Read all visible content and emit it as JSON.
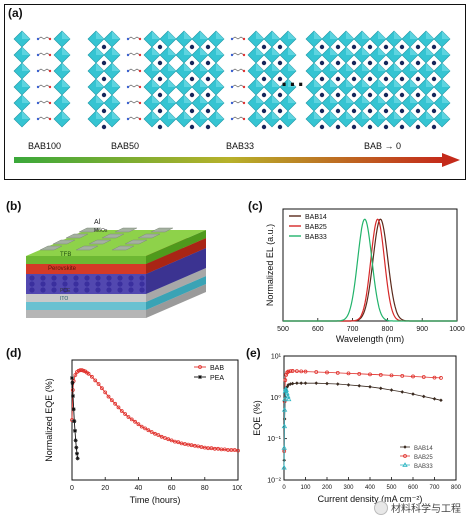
{
  "panel_labels": {
    "a": "(a)",
    "b": "(b)",
    "c": "(c)",
    "d": "(d)",
    "e": "(e)"
  },
  "structure_labels": [
    "BAB100",
    "BAB50",
    "BAB33",
    "BAB → 0"
  ],
  "ellipsis": "···",
  "device_layers": {
    "al": "Al",
    "moox": "MoOx",
    "tfb": "TFB",
    "perovskite": "Perovskite",
    "pce": "PCE",
    "ito": "ITO"
  },
  "colors": {
    "octahedra": "#35c4d2",
    "octahedra_edge": "#1f97a6",
    "gradient_start": "#3aa83a",
    "gradient_mid": "#b7b12a",
    "gradient_end": "#c42a1a",
    "bab14": "#5b2a1c",
    "bab25": "#d62828",
    "bab33": "#22b36b",
    "bab": "#e0302b",
    "pea": "#111111"
  },
  "watermark": "材料科学与工程",
  "chart_data": [
    {
      "id": "c",
      "type": "line",
      "xlabel": "Wavelength (nm)",
      "ylabel": "Normalized EL (a.u.)",
      "xlim": [
        500,
        1000
      ],
      "xticks": [
        500,
        600,
        700,
        800,
        900,
        1000
      ],
      "ylim": [
        0,
        1.1
      ],
      "legend": "top-left",
      "series": [
        {
          "name": "BAB14",
          "color": "#5b2a1c",
          "peak": 780,
          "fwhm": 50,
          "ampl": 1.0
        },
        {
          "name": "BAB25",
          "color": "#d62828",
          "peak": 772,
          "fwhm": 46,
          "ampl": 1.0
        },
        {
          "name": "BAB33",
          "color": "#22b36b",
          "peak": 735,
          "fwhm": 48,
          "ampl": 1.0
        }
      ]
    },
    {
      "id": "d",
      "type": "line",
      "xlabel": "Time (hours)",
      "ylabel": "Normalized EQE (%)",
      "xlim": [
        0,
        100
      ],
      "xticks": [
        0,
        20,
        40,
        60,
        80,
        100
      ],
      "ylim": [
        0,
        200
      ],
      "legend": "top-right",
      "series": [
        {
          "name": "BAB",
          "color": "#e0302b",
          "marker": "circle",
          "x": [
            0,
            0.5,
            1,
            2,
            3,
            4,
            5,
            6,
            7,
            8,
            9,
            10,
            12,
            14,
            16,
            18,
            20,
            22,
            24,
            26,
            28,
            30,
            32,
            34,
            36,
            38,
            40,
            42,
            44,
            46,
            48,
            50,
            52,
            54,
            56,
            58,
            60,
            62,
            64,
            66,
            68,
            70,
            72,
            74,
            76,
            78,
            80,
            82,
            84,
            86,
            88,
            90,
            92,
            94,
            96,
            98,
            100
          ],
          "y": [
            100,
            150,
            165,
            175,
            180,
            182,
            183,
            183,
            182,
            181,
            179,
            177,
            172,
            166,
            160,
            153,
            146,
            139,
            133,
            127,
            121,
            115,
            110,
            105,
            101,
            97,
            93,
            89,
            86,
            83,
            80,
            77,
            75,
            72,
            70,
            68,
            66,
            64,
            63,
            61,
            60,
            59,
            58,
            57,
            56,
            55,
            54,
            53,
            53,
            52,
            52,
            51,
            51,
            50,
            50,
            50,
            49
          ]
        },
        {
          "name": "PEA",
          "color": "#111111",
          "marker": "star",
          "x": [
            0,
            0.3,
            0.6,
            1,
            1.4,
            1.8,
            2.2,
            2.6,
            3,
            3.4
          ],
          "y": [
            170,
            162,
            140,
            118,
            98,
            82,
            66,
            54,
            44,
            36
          ]
        }
      ]
    },
    {
      "id": "e",
      "type": "line",
      "xlabel": "Current density (mA cm⁻²)",
      "ylabel": "EQE (%)",
      "xlim": [
        0,
        800
      ],
      "xticks": [
        0,
        100,
        200,
        300,
        400,
        500,
        600,
        700,
        800
      ],
      "yscale": "log",
      "ylim": [
        0.01,
        10
      ],
      "yticks": [
        0.01,
        0.1,
        1,
        10
      ],
      "yticklabels": [
        "10⁻²",
        "10⁻¹",
        "10⁰",
        "10¹"
      ],
      "legend": "bottom-right",
      "series": [
        {
          "name": "BAB14",
          "color": "#3a2a20",
          "marker": "diamond",
          "x": [
            1,
            3,
            6,
            10,
            15,
            20,
            30,
            40,
            60,
            80,
            100,
            150,
            200,
            250,
            300,
            350,
            400,
            450,
            500,
            550,
            600,
            650,
            700,
            730
          ],
          "y": [
            0.03,
            0.3,
            1.0,
            1.5,
            1.8,
            2.0,
            2.1,
            2.15,
            2.2,
            2.2,
            2.2,
            2.2,
            2.15,
            2.1,
            2.0,
            1.9,
            1.8,
            1.65,
            1.5,
            1.35,
            1.2,
            1.05,
            0.92,
            0.85
          ]
        },
        {
          "name": "BAB25",
          "color": "#e0302b",
          "marker": "circle",
          "x": [
            1,
            3,
            6,
            10,
            15,
            20,
            30,
            40,
            60,
            80,
            100,
            150,
            200,
            250,
            300,
            350,
            400,
            450,
            500,
            550,
            600,
            650,
            700,
            730
          ],
          "y": [
            0.05,
            0.8,
            2.6,
            3.5,
            4.0,
            4.2,
            4.3,
            4.35,
            4.3,
            4.25,
            4.2,
            4.1,
            4.0,
            3.9,
            3.8,
            3.7,
            3.6,
            3.5,
            3.4,
            3.3,
            3.2,
            3.1,
            3.0,
            2.95
          ]
        },
        {
          "name": "BAB33",
          "color": "#2fb7c4",
          "marker": "triangle",
          "x": [
            0.5,
            1,
            2,
            3,
            4,
            6,
            8,
            10,
            14,
            18,
            22
          ],
          "y": [
            0.02,
            0.06,
            0.2,
            0.5,
            0.9,
            1.4,
            1.6,
            1.5,
            1.25,
            1.05,
            0.9
          ]
        }
      ]
    }
  ]
}
